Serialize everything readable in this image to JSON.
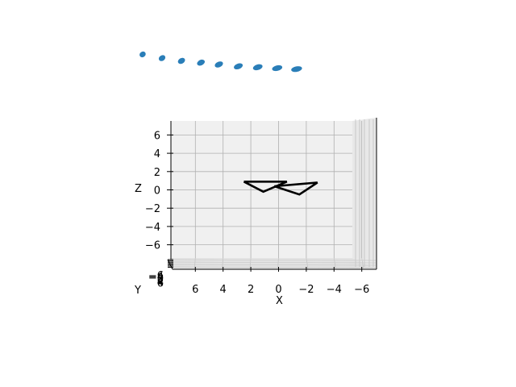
{
  "chart_data": {
    "type": "scatter3d",
    "title": "",
    "view": "front view, slight elevation",
    "axes": {
      "x": {
        "label": "X",
        "lim": [
          -7.5,
          7.5
        ],
        "ticks": [
          6,
          4,
          2,
          0,
          -2,
          -4,
          -6
        ],
        "tick_labels": [
          "6",
          "4",
          "2",
          "0",
          "−2",
          "−4",
          "−6"
        ],
        "direction": "reversed"
      },
      "y": {
        "label": "Y",
        "lim": [
          -7.5,
          7.5
        ],
        "tick_labels": [
          "−6",
          "−4",
          "−2",
          "0",
          "2",
          "4",
          "6"
        ]
      },
      "z": {
        "label": "Z",
        "lim": [
          -7.5,
          7.5
        ],
        "ticks": [
          6,
          4,
          2,
          0,
          -2,
          -4,
          -6
        ],
        "tick_labels": [
          "6",
          "4",
          "2",
          "0",
          "−2",
          "−4",
          "−6"
        ]
      }
    },
    "grid": true,
    "pane_color": "#f0f0f0",
    "scatter_series": {
      "color": "#1f77b4",
      "points": [
        {
          "x": 9.8,
          "z": 14.8
        },
        {
          "x": 8.4,
          "z": 14.4
        },
        {
          "x": 7.0,
          "z": 14.1
        },
        {
          "x": 5.6,
          "z": 13.9
        },
        {
          "x": 4.3,
          "z": 13.7
        },
        {
          "x": 2.9,
          "z": 13.5
        },
        {
          "x": 1.5,
          "z": 13.4
        },
        {
          "x": 0.1,
          "z": 13.3
        },
        {
          "x": -1.3,
          "z": 13.2
        }
      ]
    },
    "line_series": [
      {
        "name": "",
        "color": "#000000",
        "points": [
          {
            "x": 2.5,
            "z": 0.9
          },
          {
            "x": 1.1,
            "z": -0.2
          },
          {
            "x": -0.6,
            "z": 0.9
          },
          {
            "x": 2.5,
            "z": 0.9
          }
        ]
      },
      {
        "name": "",
        "color": "#000000",
        "points": [
          {
            "x": 0.3,
            "z": 0.4
          },
          {
            "x": -1.5,
            "z": -0.5
          },
          {
            "x": -2.8,
            "z": 0.8
          },
          {
            "x": 0.3,
            "z": 0.4
          }
        ]
      }
    ]
  }
}
